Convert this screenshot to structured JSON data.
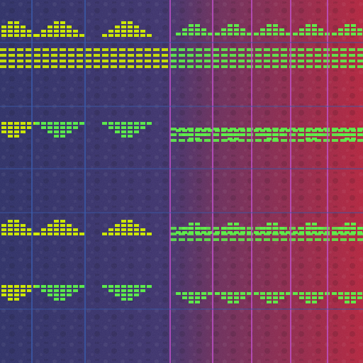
{
  "image": {
    "subject": "die-shot-micrograph",
    "palette": {
      "base_left": "#2a2c64",
      "base_right": "#b0203a",
      "cell_yellow": "#d4f000",
      "cell_green": "#5ef24a",
      "line_blue": "#3a5aa8",
      "line_magenta": "#c050c8"
    }
  }
}
